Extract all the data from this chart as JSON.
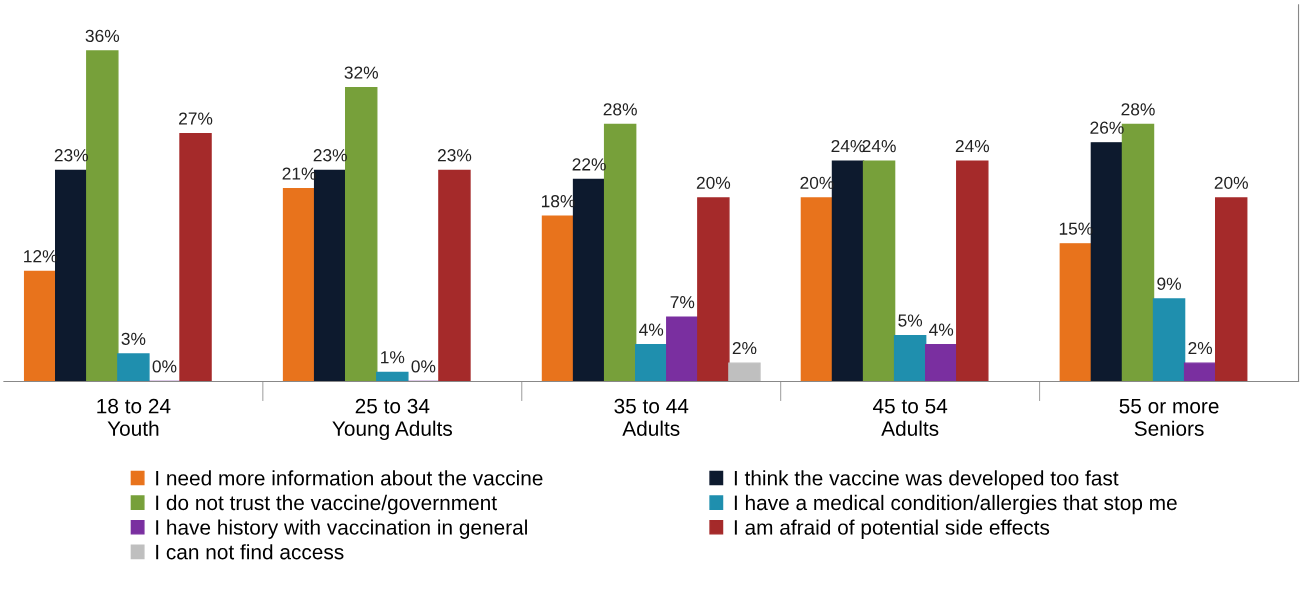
{
  "chart_data": {
    "type": "bar",
    "categories": [
      "18 to 24\nYouth",
      "25 to 34\nYoung Adults",
      "35 to 44\nAdults",
      "45 to 54\nAdults",
      "55 or more\nSeniors"
    ],
    "series": [
      {
        "name": "I need more information about the vaccine",
        "color": "#e8731c",
        "values": [
          12,
          21,
          18,
          20,
          15
        ],
        "value_labels": [
          "12%",
          "21%",
          "18%",
          "20%",
          "15%"
        ]
      },
      {
        "name": "I think the vaccine was developed too fast",
        "color": "#0d1a2e",
        "values": [
          23,
          23,
          22,
          24,
          26
        ],
        "value_labels": [
          "23%",
          "23%",
          "22%",
          "24%",
          "26%"
        ]
      },
      {
        "name": "I do not trust the vaccine/government",
        "color": "#77a03a",
        "values": [
          36,
          32,
          28,
          24,
          28
        ],
        "value_labels": [
          "36%",
          "32%",
          "28%",
          "24%",
          "28%"
        ]
      },
      {
        "name": "I have a medical condition/allergies that stop me",
        "color": "#1f8fae",
        "values": [
          3,
          1,
          4,
          5,
          9
        ],
        "value_labels": [
          "3%",
          "1%",
          "4%",
          "5%",
          "9%"
        ]
      },
      {
        "name": "I have history with vaccination in general",
        "color": "#7a2fa0",
        "values": [
          0,
          0,
          7,
          4,
          2
        ],
        "value_labels": [
          "0%",
          "0%",
          "7%",
          "4%",
          "2%"
        ]
      },
      {
        "name": "I am afraid of potential side effects",
        "color": "#a52a2a",
        "values": [
          27,
          23,
          20,
          24,
          20
        ],
        "value_labels": [
          "27%",
          "23%",
          "20%",
          "24%",
          "20%"
        ]
      },
      {
        "name": "I can not find access",
        "color": "#bfbfbf",
        "values": [
          null,
          null,
          2,
          null,
          null
        ],
        "value_labels": [
          null,
          null,
          "2%",
          null,
          null
        ]
      }
    ],
    "legend": "bottom",
    "grid": false
  }
}
